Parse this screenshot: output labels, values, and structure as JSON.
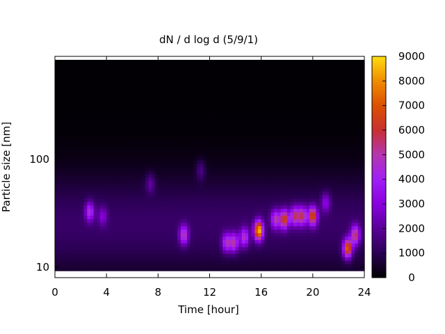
{
  "chart_data": {
    "type": "heatmap",
    "title": "dN / d log d (5/9/1)",
    "xlabel": "Time [hour]",
    "ylabel": "Particle size [nm]",
    "x_range": [
      0,
      24
    ],
    "x_ticks": [
      0,
      4,
      8,
      12,
      16,
      20,
      24
    ],
    "y_scale": "log",
    "y_range": [
      8,
      900
    ],
    "y_ticks": [
      10,
      100
    ],
    "colorbar": {
      "range": [
        0,
        9000
      ],
      "ticks": [
        0,
        1000,
        2000,
        3000,
        4000,
        5000,
        6000,
        7000,
        8000,
        9000
      ],
      "palette": [
        "#000000",
        "#2b0055",
        "#5a0099",
        "#8a00e0",
        "#a01ff5",
        "#b535b0",
        "#c83030",
        "#dc5000",
        "#f08c00",
        "#ffdc10"
      ]
    },
    "background_level": 1200,
    "diameter_profile_peak_nm": 25,
    "features": [
      {
        "time": 2.7,
        "diameter": 33,
        "value": 3400
      },
      {
        "time": 3.7,
        "diameter": 30,
        "value": 1800
      },
      {
        "time": 7.4,
        "diameter": 60,
        "value": 1500
      },
      {
        "time": 10.0,
        "diameter": 20,
        "value": 3900
      },
      {
        "time": 11.3,
        "diameter": 80,
        "value": 1300
      },
      {
        "time": 13.3,
        "diameter": 17,
        "value": 3500
      },
      {
        "time": 13.9,
        "diameter": 17,
        "value": 3800
      },
      {
        "time": 14.7,
        "diameter": 19,
        "value": 3600
      },
      {
        "time": 15.8,
        "diameter": 22,
        "value": 7600
      },
      {
        "time": 17.1,
        "diameter": 28,
        "value": 3700
      },
      {
        "time": 17.8,
        "diameter": 28,
        "value": 5400
      },
      {
        "time": 18.6,
        "diameter": 30,
        "value": 4300
      },
      {
        "time": 19.2,
        "diameter": 30,
        "value": 4300
      },
      {
        "time": 20.0,
        "diameter": 30,
        "value": 5800
      },
      {
        "time": 21.0,
        "diameter": 40,
        "value": 2200
      },
      {
        "time": 22.7,
        "diameter": 15,
        "value": 6400
      },
      {
        "time": 23.3,
        "diameter": 20,
        "value": 4600
      }
    ]
  }
}
